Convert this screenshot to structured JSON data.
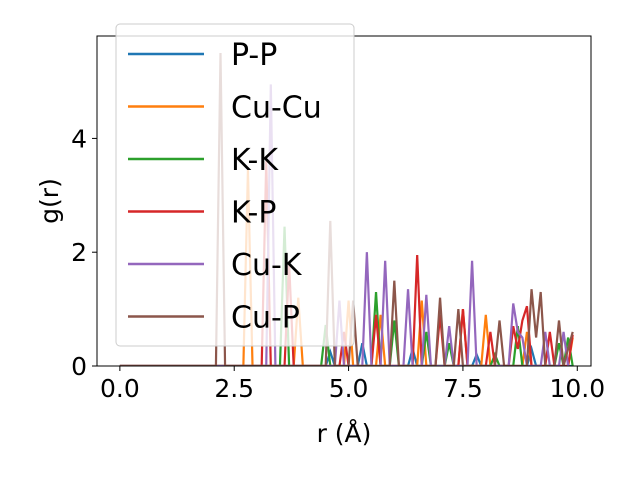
{
  "chart_data": {
    "type": "line",
    "xlabel": "r (Å)",
    "ylabel": "g(r)",
    "xlim": [
      -0.5,
      10.3
    ],
    "ylim": [
      0,
      5.8
    ],
    "xticks": [
      0.0,
      2.5,
      5.0,
      7.5,
      10.0
    ],
    "xtick_labels": [
      "0.0",
      "2.5",
      "5.0",
      "7.5",
      "10.0"
    ],
    "yticks": [
      0,
      2,
      4
    ],
    "ytick_labels": [
      "0",
      "2",
      "4"
    ],
    "grid": false,
    "legend": {
      "placement": "upper-left"
    },
    "series": [
      {
        "name": "P-P",
        "color": "#1f77b4",
        "points": [
          [
            0.0,
            0
          ],
          [
            4.5,
            0
          ],
          [
            4.6,
            0.25
          ],
          [
            4.7,
            0
          ],
          [
            5.2,
            0
          ],
          [
            5.3,
            0.4
          ],
          [
            5.4,
            0
          ],
          [
            6.3,
            0
          ],
          [
            6.4,
            0.3
          ],
          [
            6.5,
            0
          ],
          [
            7.7,
            0
          ],
          [
            7.8,
            0.2
          ],
          [
            7.9,
            0
          ],
          [
            8.9,
            0
          ],
          [
            9.0,
            0.3
          ],
          [
            9.1,
            0
          ],
          [
            9.9,
            0
          ]
        ]
      },
      {
        "name": "Cu-Cu",
        "color": "#ff7f0e",
        "points": [
          [
            0.0,
            0
          ],
          [
            2.7,
            0
          ],
          [
            2.8,
            3.45
          ],
          [
            2.9,
            0
          ],
          [
            3.8,
            0
          ],
          [
            3.9,
            1.2
          ],
          [
            4.0,
            0
          ],
          [
            4.9,
            0
          ],
          [
            5.0,
            1.15
          ],
          [
            5.1,
            0
          ],
          [
            5.6,
            0
          ],
          [
            5.7,
            0.9
          ],
          [
            5.8,
            0
          ],
          [
            6.5,
            0
          ],
          [
            6.6,
            1.15
          ],
          [
            6.7,
            0
          ],
          [
            7.4,
            0
          ],
          [
            7.5,
            1.0
          ],
          [
            7.6,
            0
          ],
          [
            7.9,
            0
          ],
          [
            8.0,
            0.9
          ],
          [
            8.1,
            0
          ],
          [
            8.8,
            0
          ],
          [
            8.9,
            0.6
          ],
          [
            9.0,
            0
          ],
          [
            9.8,
            0
          ],
          [
            9.9,
            0.5
          ]
        ]
      },
      {
        "name": "K-K",
        "color": "#2ca02c",
        "points": [
          [
            0.0,
            0
          ],
          [
            3.5,
            0
          ],
          [
            3.6,
            2.45
          ],
          [
            3.7,
            0
          ],
          [
            4.4,
            0
          ],
          [
            4.5,
            0.72
          ],
          [
            4.6,
            0
          ],
          [
            5.5,
            0
          ],
          [
            5.6,
            1.3
          ],
          [
            5.7,
            0
          ],
          [
            5.9,
            0
          ],
          [
            6.0,
            0.8
          ],
          [
            6.1,
            0
          ],
          [
            6.6,
            0
          ],
          [
            6.7,
            0.6
          ],
          [
            6.8,
            0
          ],
          [
            7.1,
            0
          ],
          [
            7.2,
            0.4
          ],
          [
            7.3,
            0
          ],
          [
            8.1,
            0
          ],
          [
            8.2,
            0.2
          ],
          [
            8.3,
            0
          ],
          [
            8.6,
            0
          ],
          [
            8.7,
            0.7
          ],
          [
            8.8,
            0
          ],
          [
            9.5,
            0
          ],
          [
            9.6,
            0.4
          ],
          [
            9.7,
            0
          ],
          [
            9.8,
            0.5
          ],
          [
            9.9,
            0
          ]
        ]
      },
      {
        "name": "K-P",
        "color": "#d62728",
        "points": [
          [
            0.0,
            0
          ],
          [
            3.1,
            0
          ],
          [
            3.2,
            3.6
          ],
          [
            3.3,
            0
          ],
          [
            3.6,
            0
          ],
          [
            3.7,
            1.8
          ],
          [
            3.8,
            0
          ],
          [
            4.8,
            0
          ],
          [
            4.9,
            0.6
          ],
          [
            5.0,
            0
          ],
          [
            5.5,
            0
          ],
          [
            5.6,
            0.9
          ],
          [
            5.7,
            0
          ],
          [
            6.4,
            0
          ],
          [
            6.5,
            1.95
          ],
          [
            6.6,
            0
          ],
          [
            6.9,
            0
          ],
          [
            7.0,
            0.9
          ],
          [
            7.1,
            0
          ],
          [
            7.4,
            0
          ],
          [
            7.5,
            1.0
          ],
          [
            7.6,
            0
          ],
          [
            8.0,
            0
          ],
          [
            8.1,
            0.6
          ],
          [
            8.2,
            0
          ],
          [
            8.5,
            0
          ],
          [
            8.6,
            0.7
          ],
          [
            8.7,
            0.3
          ],
          [
            8.8,
            0.8
          ],
          [
            8.9,
            1.05
          ],
          [
            9.0,
            0
          ],
          [
            9.3,
            0
          ],
          [
            9.4,
            0.6
          ],
          [
            9.5,
            0
          ],
          [
            9.8,
            0
          ],
          [
            9.9,
            0.55
          ]
        ]
      },
      {
        "name": "Cu-K",
        "color": "#9467bd",
        "points": [
          [
            0.0,
            0
          ],
          [
            3.2,
            0
          ],
          [
            3.3,
            4.95
          ],
          [
            3.4,
            0
          ],
          [
            4.7,
            0
          ],
          [
            4.8,
            1.15
          ],
          [
            4.9,
            0
          ],
          [
            5.3,
            0
          ],
          [
            5.4,
            2.0
          ],
          [
            5.5,
            0
          ],
          [
            5.7,
            0
          ],
          [
            5.8,
            1.85
          ],
          [
            5.9,
            0
          ],
          [
            6.2,
            0
          ],
          [
            6.3,
            1.35
          ],
          [
            6.4,
            0
          ],
          [
            6.6,
            0
          ],
          [
            6.7,
            1.25
          ],
          [
            6.8,
            0
          ],
          [
            7.1,
            0
          ],
          [
            7.2,
            0.7
          ],
          [
            7.3,
            0
          ],
          [
            7.6,
            0
          ],
          [
            7.7,
            1.85
          ],
          [
            7.8,
            0
          ],
          [
            8.5,
            0
          ],
          [
            8.6,
            1.1
          ],
          [
            8.7,
            0.6
          ],
          [
            8.8,
            0.5
          ],
          [
            8.9,
            0
          ],
          [
            9.2,
            0
          ],
          [
            9.3,
            0.6
          ],
          [
            9.4,
            0
          ],
          [
            9.6,
            0
          ],
          [
            9.7,
            0.6
          ],
          [
            9.8,
            0
          ]
        ]
      },
      {
        "name": "Cu-P",
        "color": "#8c564b",
        "points": [
          [
            0.0,
            0
          ],
          [
            2.1,
            0
          ],
          [
            2.2,
            5.5
          ],
          [
            2.3,
            0
          ],
          [
            4.5,
            0
          ],
          [
            4.6,
            2.55
          ],
          [
            4.7,
            0
          ],
          [
            5.0,
            0
          ],
          [
            5.1,
            1.15
          ],
          [
            5.2,
            0
          ],
          [
            5.9,
            0
          ],
          [
            6.0,
            1.5
          ],
          [
            6.1,
            0
          ],
          [
            6.9,
            0
          ],
          [
            7.0,
            1.2
          ],
          [
            7.1,
            0
          ],
          [
            7.3,
            0
          ],
          [
            7.4,
            1.0
          ],
          [
            7.5,
            0
          ],
          [
            8.2,
            0
          ],
          [
            8.3,
            0.8
          ],
          [
            8.4,
            0
          ],
          [
            8.9,
            0
          ],
          [
            9.0,
            1.35
          ],
          [
            9.1,
            0.5
          ],
          [
            9.2,
            1.3
          ],
          [
            9.3,
            0
          ],
          [
            9.5,
            0
          ],
          [
            9.6,
            0.8
          ],
          [
            9.7,
            0
          ],
          [
            9.9,
            0.6
          ]
        ]
      }
    ]
  }
}
